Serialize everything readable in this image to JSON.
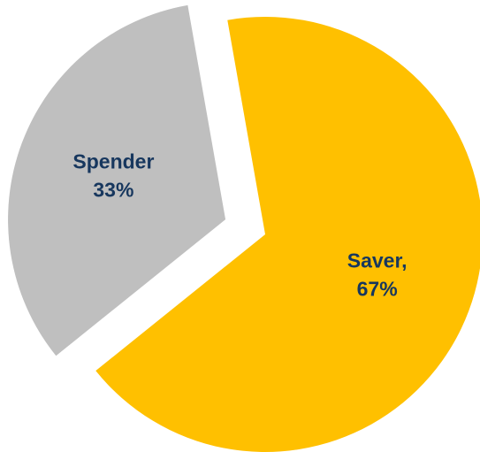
{
  "chart_data": {
    "type": "pie",
    "categories": [
      "Saver,",
      "Spender"
    ],
    "values": [
      67,
      33
    ],
    "value_labels": [
      "67%",
      "33%"
    ],
    "colors": [
      "#ffc000",
      "#bfbfbf"
    ]
  }
}
